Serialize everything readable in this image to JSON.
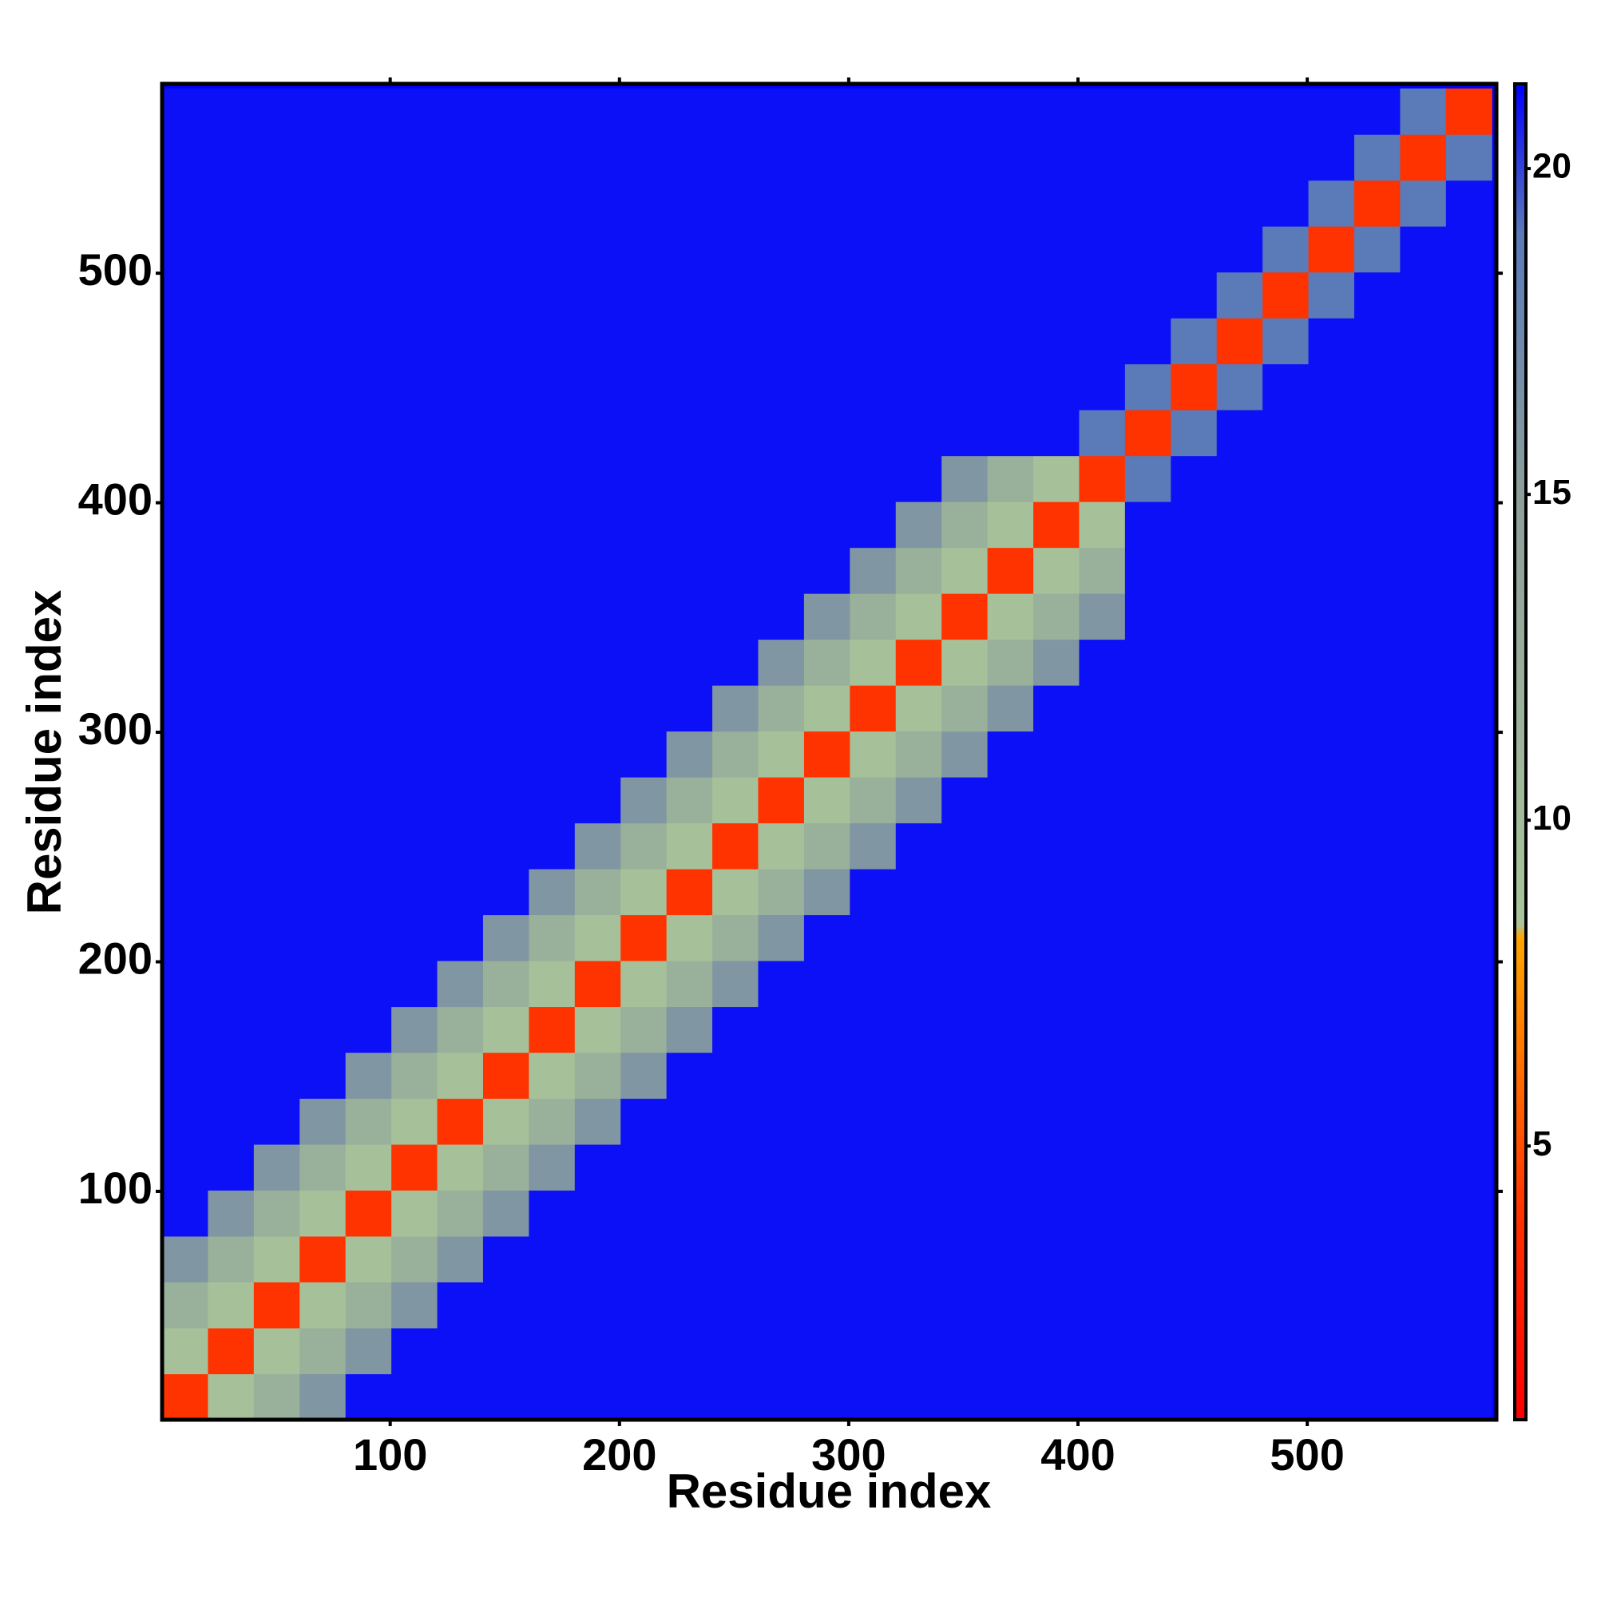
{
  "chart_data": {
    "type": "heatmap",
    "x_label": "Residue index",
    "y_label": "Residue index",
    "xlim": [
      0.5,
      582.5
    ],
    "ylim": [
      0.5,
      582.5
    ],
    "xticks": [
      100,
      200,
      300,
      400,
      500
    ],
    "yticks": [
      100,
      200,
      300,
      400,
      500
    ],
    "bins": [
      0.5,
      20.5,
      40.5,
      60.5,
      80.5,
      100.5,
      120.5,
      140.5,
      160.5,
      180.5,
      200.5,
      220.5,
      240.5,
      260.5,
      280.5,
      300.5,
      320.5,
      340.5,
      360.5,
      380.5,
      400.5,
      420.5,
      440.5,
      460.5,
      480.5,
      500.5,
      520.5,
      540.5,
      560.5,
      580.5
    ],
    "zlim": [
      0.8,
      21.3
    ],
    "zticks": [
      5,
      10,
      15,
      20
    ],
    "colorscale": [
      {
        "value": 0.8,
        "color": "#ff0000"
      },
      {
        "value": 4,
        "color": "#ff3300"
      },
      {
        "value": 8.2,
        "color": "#ffa500"
      },
      {
        "value": 8.4,
        "color": "#a9c49a"
      },
      {
        "value": 15,
        "color": "#8c9f9a"
      },
      {
        "value": 19,
        "color": "#5a7ab8"
      },
      {
        "value": 21.3,
        "color": "#0000ff"
      }
    ],
    "z": [
      [
        4,
        9,
        12,
        16,
        21,
        21,
        21,
        21,
        21,
        21,
        21,
        21,
        21,
        21,
        21,
        21,
        21,
        21,
        21,
        21,
        21,
        21,
        21,
        21,
        21,
        21,
        21,
        21,
        21
      ],
      [
        9,
        4,
        9,
        12,
        16,
        21,
        21,
        21,
        21,
        21,
        21,
        21,
        21,
        21,
        21,
        21,
        21,
        21,
        21,
        21,
        21,
        21,
        21,
        21,
        21,
        21,
        21,
        21,
        21
      ],
      [
        12,
        9,
        4,
        9,
        12,
        16,
        21,
        21,
        21,
        21,
        21,
        21,
        21,
        21,
        21,
        21,
        21,
        21,
        21,
        21,
        21,
        21,
        21,
        21,
        21,
        21,
        21,
        21,
        21
      ],
      [
        16,
        12,
        9,
        4,
        9,
        12,
        16,
        21,
        21,
        21,
        21,
        21,
        21,
        21,
        21,
        21,
        21,
        21,
        21,
        21,
        21,
        21,
        21,
        21,
        21,
        21,
        21,
        21,
        21
      ],
      [
        21,
        16,
        12,
        9,
        4,
        9,
        12,
        16,
        21,
        21,
        21,
        21,
        21,
        21,
        21,
        21,
        21,
        21,
        21,
        21,
        21,
        21,
        21,
        21,
        21,
        21,
        21,
        21,
        21
      ],
      [
        21,
        21,
        16,
        12,
        9,
        4,
        9,
        12,
        16,
        21,
        21,
        21,
        21,
        21,
        21,
        21,
        21,
        21,
        21,
        21,
        21,
        21,
        21,
        21,
        21,
        21,
        21,
        21,
        21
      ],
      [
        21,
        21,
        21,
        16,
        12,
        9,
        4,
        9,
        12,
        16,
        21,
        21,
        21,
        21,
        21,
        21,
        21,
        21,
        21,
        21,
        21,
        21,
        21,
        21,
        21,
        21,
        21,
        21,
        21
      ],
      [
        21,
        21,
        21,
        21,
        16,
        12,
        9,
        4,
        9,
        12,
        16,
        21,
        21,
        21,
        21,
        21,
        21,
        21,
        21,
        21,
        21,
        21,
        21,
        21,
        21,
        21,
        21,
        21,
        21
      ],
      [
        21,
        21,
        21,
        21,
        21,
        16,
        12,
        9,
        4,
        9,
        12,
        16,
        21,
        21,
        21,
        21,
        21,
        21,
        21,
        21,
        21,
        21,
        21,
        21,
        21,
        21,
        21,
        21,
        21
      ],
      [
        21,
        21,
        21,
        21,
        21,
        21,
        16,
        12,
        9,
        4,
        9,
        12,
        16,
        21,
        21,
        21,
        21,
        21,
        21,
        21,
        21,
        21,
        21,
        21,
        21,
        21,
        21,
        21,
        21
      ],
      [
        21,
        21,
        21,
        21,
        21,
        21,
        21,
        16,
        12,
        9,
        4,
        9,
        12,
        16,
        21,
        21,
        21,
        21,
        21,
        21,
        21,
        21,
        21,
        21,
        21,
        21,
        21,
        21,
        21
      ],
      [
        21,
        21,
        21,
        21,
        21,
        21,
        21,
        21,
        16,
        12,
        9,
        4,
        9,
        12,
        16,
        21,
        21,
        21,
        21,
        21,
        21,
        21,
        21,
        21,
        21,
        21,
        21,
        21,
        21
      ],
      [
        21,
        21,
        21,
        21,
        21,
        21,
        21,
        21,
        21,
        16,
        12,
        9,
        4,
        9,
        12,
        16,
        21,
        21,
        21,
        21,
        21,
        21,
        21,
        21,
        21,
        21,
        21,
        21,
        21
      ],
      [
        21,
        21,
        21,
        21,
        21,
        21,
        21,
        21,
        21,
        21,
        16,
        12,
        9,
        4,
        9,
        12,
        16,
        21,
        21,
        21,
        21,
        21,
        21,
        21,
        21,
        21,
        21,
        21,
        21
      ],
      [
        21,
        21,
        21,
        21,
        21,
        21,
        21,
        21,
        21,
        21,
        21,
        16,
        12,
        9,
        4,
        9,
        12,
        16,
        21,
        21,
        21,
        21,
        21,
        21,
        21,
        21,
        21,
        21,
        21
      ],
      [
        21,
        21,
        21,
        21,
        21,
        21,
        21,
        21,
        21,
        21,
        21,
        21,
        16,
        12,
        9,
        4,
        9,
        12,
        16,
        21,
        21,
        21,
        21,
        21,
        21,
        21,
        21,
        21,
        21
      ],
      [
        21,
        21,
        21,
        21,
        21,
        21,
        21,
        21,
        21,
        21,
        21,
        21,
        21,
        16,
        12,
        9,
        4,
        9,
        12,
        16,
        21,
        21,
        21,
        21,
        21,
        21,
        21,
        21,
        21
      ],
      [
        21,
        21,
        21,
        21,
        21,
        21,
        21,
        21,
        21,
        21,
        21,
        21,
        21,
        21,
        16,
        12,
        9,
        4,
        9,
        12,
        16,
        21,
        21,
        21,
        21,
        21,
        21,
        21,
        21
      ],
      [
        21,
        21,
        21,
        21,
        21,
        21,
        21,
        21,
        21,
        21,
        21,
        21,
        21,
        21,
        21,
        16,
        12,
        9,
        4,
        9,
        12,
        21,
        21,
        21,
        21,
        21,
        21,
        21,
        21
      ],
      [
        21,
        21,
        21,
        21,
        21,
        21,
        21,
        21,
        21,
        21,
        21,
        21,
        21,
        21,
        21,
        21,
        16,
        12,
        9,
        4,
        9,
        21,
        21,
        21,
        21,
        21,
        21,
        21,
        21
      ],
      [
        21,
        21,
        21,
        21,
        21,
        21,
        21,
        21,
        21,
        21,
        21,
        21,
        21,
        21,
        21,
        21,
        21,
        16,
        12,
        9,
        4,
        19,
        21,
        21,
        21,
        21,
        21,
        21,
        21
      ],
      [
        21,
        21,
        21,
        21,
        21,
        21,
        21,
        21,
        21,
        21,
        21,
        21,
        21,
        21,
        21,
        21,
        21,
        21,
        21,
        21,
        19,
        4,
        19,
        21,
        21,
        21,
        21,
        21,
        21
      ],
      [
        21,
        21,
        21,
        21,
        21,
        21,
        21,
        21,
        21,
        21,
        21,
        21,
        21,
        21,
        21,
        21,
        21,
        21,
        21,
        21,
        21,
        19,
        4,
        19,
        21,
        21,
        21,
        21,
        21
      ],
      [
        21,
        21,
        21,
        21,
        21,
        21,
        21,
        21,
        21,
        21,
        21,
        21,
        21,
        21,
        21,
        21,
        21,
        21,
        21,
        21,
        21,
        21,
        19,
        4,
        19,
        21,
        21,
        21,
        21
      ],
      [
        21,
        21,
        21,
        21,
        21,
        21,
        21,
        21,
        21,
        21,
        21,
        21,
        21,
        21,
        21,
        21,
        21,
        21,
        21,
        21,
        21,
        21,
        21,
        19,
        4,
        19,
        21,
        21,
        21
      ],
      [
        21,
        21,
        21,
        21,
        21,
        21,
        21,
        21,
        21,
        21,
        21,
        21,
        21,
        21,
        21,
        21,
        21,
        21,
        21,
        21,
        21,
        21,
        21,
        21,
        19,
        4,
        19,
        21,
        21
      ],
      [
        21,
        21,
        21,
        21,
        21,
        21,
        21,
        21,
        21,
        21,
        21,
        21,
        21,
        21,
        21,
        21,
        21,
        21,
        21,
        21,
        21,
        21,
        21,
        21,
        21,
        19,
        4,
        19,
        21
      ],
      [
        21,
        21,
        21,
        21,
        21,
        21,
        21,
        21,
        21,
        21,
        21,
        21,
        21,
        21,
        21,
        21,
        21,
        21,
        21,
        21,
        21,
        21,
        21,
        21,
        21,
        21,
        19,
        4,
        19
      ],
      [
        21,
        21,
        21,
        21,
        21,
        21,
        21,
        21,
        21,
        21,
        21,
        21,
        21,
        21,
        21,
        21,
        21,
        21,
        21,
        21,
        21,
        21,
        21,
        21,
        21,
        21,
        21,
        19,
        4
      ]
    ]
  }
}
